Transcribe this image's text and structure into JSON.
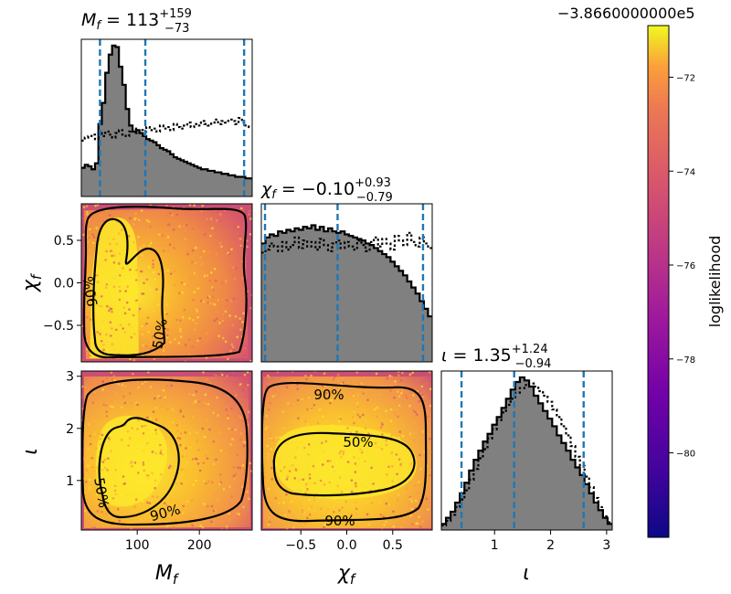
{
  "chart_data": {
    "type": "corner",
    "offset_text": "−3.8660000000e5",
    "colorbar": {
      "label": "loglikelihood",
      "ticks": [
        "−72",
        "−74",
        "−76",
        "−78",
        "−80"
      ],
      "tick_values": [
        -72,
        -74,
        -76,
        -78,
        -80
      ],
      "range": [
        -81.8,
        -70.9
      ],
      "colormap": "plasma"
    },
    "params": [
      {
        "key": "mf",
        "label": "M_f",
        "range": [
          10,
          285
        ],
        "ticks": [
          "100",
          "200"
        ],
        "tick_values": [
          100,
          200
        ],
        "title": {
          "name": "M_f",
          "value": "113",
          "upper": "+159",
          "lower": "−73"
        },
        "quantiles": [
          40,
          113,
          272
        ]
      },
      {
        "key": "chi",
        "label": "χ_f",
        "range": [
          -0.93,
          0.93
        ],
        "ticks": [
          "−0.5",
          "0.0",
          "0.5"
        ],
        "tick_values": [
          -0.5,
          0.0,
          0.5
        ],
        "title": {
          "name": "χ_f",
          "value": "−0.10",
          "upper": "+0.93",
          "lower": "−0.79"
        },
        "quantiles": [
          -0.89,
          -0.1,
          0.83
        ]
      },
      {
        "key": "iota",
        "label": "ι",
        "range": [
          0.05,
          3.1
        ],
        "ticks": [
          "1",
          "2",
          "3"
        ],
        "tick_values": [
          1,
          2,
          3
        ],
        "title": {
          "name": "ι",
          "value": "1.35",
          "upper": "+1.24",
          "lower": "−0.94"
        },
        "quantiles": [
          0.41,
          1.35,
          2.59
        ]
      }
    ],
    "yticks_chi": [
      "0.5",
      "0.0",
      "−0.5"
    ],
    "yticks_iota": [
      "1",
      "2",
      "3"
    ],
    "contour_labels": [
      "90%",
      "50%"
    ],
    "hist_mf": {
      "posterior": [
        0.19,
        0.21,
        0.2,
        0.18,
        0.22,
        0.48,
        0.62,
        0.82,
        0.94,
        1.0,
        0.99,
        0.86,
        0.74,
        0.58,
        0.47,
        0.43,
        0.44,
        0.42,
        0.4,
        0.38,
        0.37,
        0.36,
        0.34,
        0.32,
        0.31,
        0.3,
        0.28,
        0.26,
        0.25,
        0.24,
        0.23,
        0.22,
        0.21,
        0.2,
        0.19,
        0.18,
        0.18,
        0.17,
        0.17,
        0.16,
        0.16,
        0.15,
        0.15,
        0.14,
        0.14,
        0.13,
        0.13,
        0.13,
        0.12,
        0.12
      ],
      "prior": [
        0.37,
        0.39,
        0.4,
        0.41,
        0.38,
        0.42,
        0.4,
        0.43,
        0.41,
        0.39,
        0.42,
        0.44,
        0.41,
        0.4,
        0.43,
        0.45,
        0.42,
        0.44,
        0.43,
        0.46,
        0.44,
        0.45,
        0.43,
        0.47,
        0.45,
        0.46,
        0.44,
        0.48,
        0.46,
        0.45,
        0.47,
        0.49,
        0.46,
        0.48,
        0.47,
        0.5,
        0.48,
        0.47,
        0.49,
        0.51,
        0.48,
        0.5,
        0.49,
        0.51,
        0.5,
        0.48,
        0.52,
        0.49,
        0.47,
        0.46
      ]
    },
    "hist_chi": {
      "posterior": [
        0.78,
        0.82,
        0.84,
        0.83,
        0.86,
        0.85,
        0.87,
        0.86,
        0.88,
        0.87,
        0.89,
        0.88,
        0.9,
        0.87,
        0.89,
        0.86,
        0.88,
        0.86,
        0.85,
        0.86,
        0.84,
        0.83,
        0.82,
        0.81,
        0.8,
        0.78,
        0.77,
        0.75,
        0.73,
        0.71,
        0.69,
        0.66,
        0.63,
        0.6,
        0.57,
        0.53,
        0.49,
        0.45,
        0.4,
        0.35,
        0.3
      ],
      "prior": [
        0.72,
        0.74,
        0.78,
        0.76,
        0.73,
        0.79,
        0.74,
        0.77,
        0.82,
        0.75,
        0.8,
        0.76,
        0.79,
        0.74,
        0.81,
        0.77,
        0.73,
        0.78,
        0.8,
        0.75,
        0.79,
        0.76,
        0.74,
        0.8,
        0.77,
        0.73,
        0.79,
        0.82,
        0.76,
        0.81,
        0.78,
        0.74,
        0.83,
        0.8,
        0.77,
        0.85,
        0.79,
        0.76,
        0.82,
        0.78,
        0.75
      ]
    },
    "hist_iota": {
      "posterior": [
        0.04,
        0.08,
        0.12,
        0.18,
        0.24,
        0.31,
        0.39,
        0.46,
        0.52,
        0.58,
        0.63,
        0.69,
        0.74,
        0.8,
        0.86,
        0.92,
        0.97,
        1.0,
        0.98,
        0.94,
        0.88,
        0.83,
        0.78,
        0.73,
        0.68,
        0.62,
        0.57,
        0.52,
        0.46,
        0.41,
        0.36,
        0.3,
        0.24,
        0.18,
        0.13,
        0.08,
        0.04
      ],
      "prior": [
        0.03,
        0.06,
        0.1,
        0.15,
        0.2,
        0.26,
        0.33,
        0.4,
        0.47,
        0.53,
        0.6,
        0.66,
        0.72,
        0.77,
        0.82,
        0.86,
        0.9,
        0.93,
        0.95,
        0.96,
        0.94,
        0.91,
        0.88,
        0.84,
        0.79,
        0.74,
        0.68,
        0.62,
        0.55,
        0.48,
        0.42,
        0.35,
        0.28,
        0.21,
        0.15,
        0.09,
        0.05
      ]
    }
  }
}
